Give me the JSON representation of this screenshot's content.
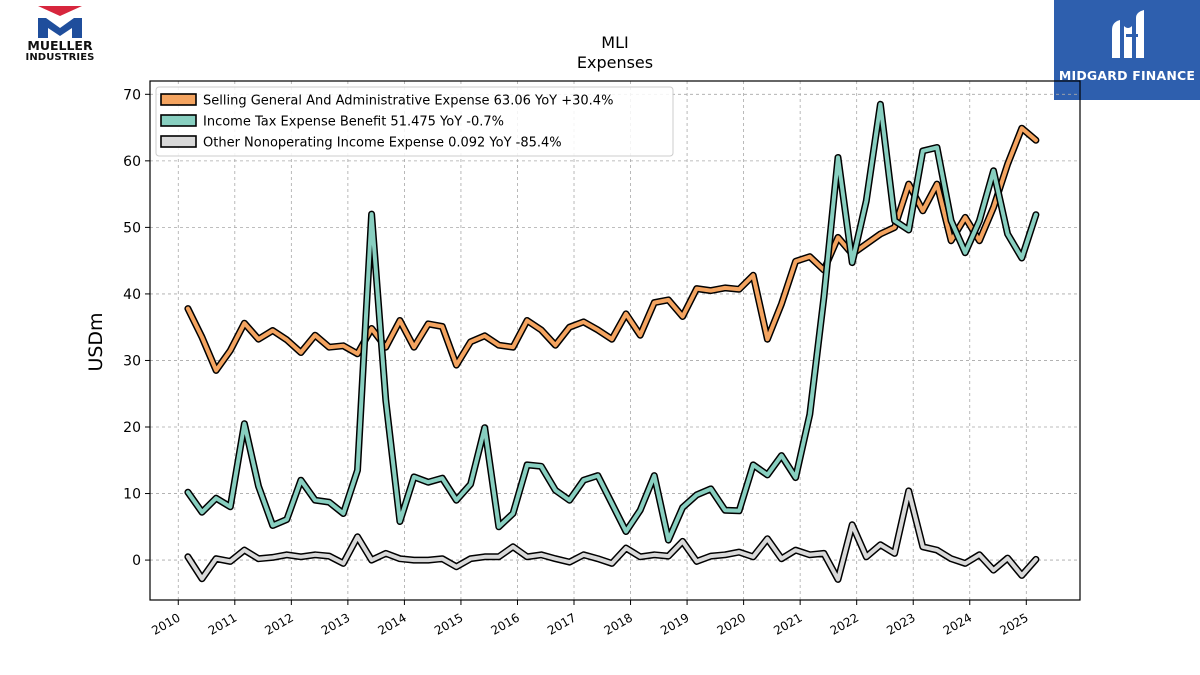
{
  "brand_left": {
    "line1": "MUELLER",
    "line2": "INDUSTRIES"
  },
  "brand_right": {
    "name": "MIDGARD FINANCE"
  },
  "chart_data": {
    "type": "line",
    "title": "MLI",
    "subtitle": "Expenses",
    "ylabel": "USDm",
    "xlabel": "",
    "ylim": [
      -6,
      72
    ],
    "xlim": [
      2009.5,
      2025.95
    ],
    "yticks": [
      0,
      10,
      20,
      30,
      40,
      50,
      60,
      70
    ],
    "xticks": [
      2010,
      2011,
      2012,
      2013,
      2014,
      2015,
      2016,
      2017,
      2018,
      2019,
      2020,
      2021,
      2022,
      2023,
      2024,
      2025
    ],
    "grid": true,
    "legend_position": "top-left",
    "x": [
      2010.17,
      2010.42,
      2010.67,
      2010.92,
      2011.17,
      2011.42,
      2011.67,
      2011.92,
      2012.17,
      2012.42,
      2012.67,
      2012.92,
      2013.17,
      2013.42,
      2013.67,
      2013.92,
      2014.17,
      2014.42,
      2014.67,
      2014.92,
      2015.17,
      2015.42,
      2015.67,
      2015.92,
      2016.17,
      2016.42,
      2016.67,
      2016.92,
      2017.17,
      2017.42,
      2017.67,
      2017.92,
      2018.17,
      2018.42,
      2018.67,
      2018.92,
      2019.17,
      2019.42,
      2019.67,
      2019.92,
      2020.17,
      2020.42,
      2020.67,
      2020.92,
      2021.17,
      2021.42,
      2021.67,
      2021.92,
      2022.17,
      2022.42,
      2022.67,
      2022.92,
      2023.17,
      2023.42,
      2023.67,
      2023.92,
      2024.17,
      2024.42,
      2024.67,
      2024.92,
      2025.17
    ],
    "series": [
      {
        "name": "Selling General And Administrative Expense",
        "legend_label": "Selling General And Administrative Expense  63.06 YoY +30.4%",
        "color": "#f4a460",
        "values": [
          37.8,
          33.5,
          28.5,
          31.5,
          35.6,
          33.2,
          34.5,
          33.1,
          31.2,
          33.8,
          32.0,
          32.2,
          31.0,
          34.8,
          32.0,
          36.0,
          32.0,
          35.5,
          35.1,
          29.3,
          32.8,
          33.7,
          32.3,
          32.0,
          36.0,
          34.6,
          32.3,
          35.0,
          35.8,
          34.6,
          33.2,
          37.0,
          33.8,
          38.7,
          39.1,
          36.6,
          40.8,
          40.5,
          40.9,
          40.7,
          42.8,
          33.2,
          38.5,
          44.9,
          45.6,
          43.6,
          48.5,
          46.0,
          47.5,
          49.0,
          50.0,
          56.5,
          52.5,
          56.5,
          48.0,
          51.5,
          48.0,
          53.0,
          59.5,
          64.9,
          63.1
        ]
      },
      {
        "name": "Income Tax Expense Benefit",
        "legend_label": "Income Tax Expense Benefit  51.475 YoY -0.7%",
        "color": "#88cfc0",
        "values": [
          10.2,
          7.2,
          9.3,
          8.0,
          20.5,
          11.1,
          5.2,
          6.1,
          12.0,
          9.0,
          8.7,
          7.0,
          13.5,
          52.0,
          24.0,
          5.8,
          12.5,
          11.7,
          12.3,
          9.0,
          11.4,
          19.9,
          5.0,
          7.0,
          14.3,
          14.1,
          10.5,
          9.0,
          12.0,
          12.7,
          8.5,
          4.3,
          7.5,
          12.7,
          3.0,
          7.9,
          9.8,
          10.7,
          7.5,
          7.4,
          14.3,
          12.8,
          15.7,
          12.4,
          21.9,
          39.5,
          60.5,
          44.7,
          54.0,
          68.5,
          51.0,
          49.6,
          61.5,
          62.0,
          51.0,
          46.2,
          51.0,
          58.5,
          49.0,
          45.4,
          51.9
        ]
      },
      {
        "name": "Other Nonoperating Income Expense",
        "legend_label": "Other Nonoperating Income Expense  0.092 YoY -85.4%",
        "color": "#d9d9d9",
        "values": [
          0.5,
          -2.8,
          0.2,
          -0.2,
          1.5,
          0.2,
          0.4,
          0.8,
          0.5,
          0.8,
          0.6,
          -0.5,
          3.5,
          0.0,
          1.0,
          0.2,
          0.0,
          0.0,
          0.2,
          -1.0,
          0.2,
          0.5,
          0.5,
          2.0,
          0.5,
          0.8,
          0.2,
          -0.3,
          0.8,
          0.2,
          -0.5,
          1.8,
          0.5,
          0.8,
          0.6,
          2.8,
          -0.2,
          0.6,
          0.8,
          1.2,
          0.5,
          3.2,
          0.2,
          1.5,
          0.8,
          1.0,
          -2.9,
          5.3,
          0.5,
          2.3,
          1.0,
          10.4,
          2.0,
          1.5,
          0.2,
          -0.5,
          0.8,
          -1.5,
          0.3,
          -2.3,
          0.1
        ]
      }
    ]
  }
}
